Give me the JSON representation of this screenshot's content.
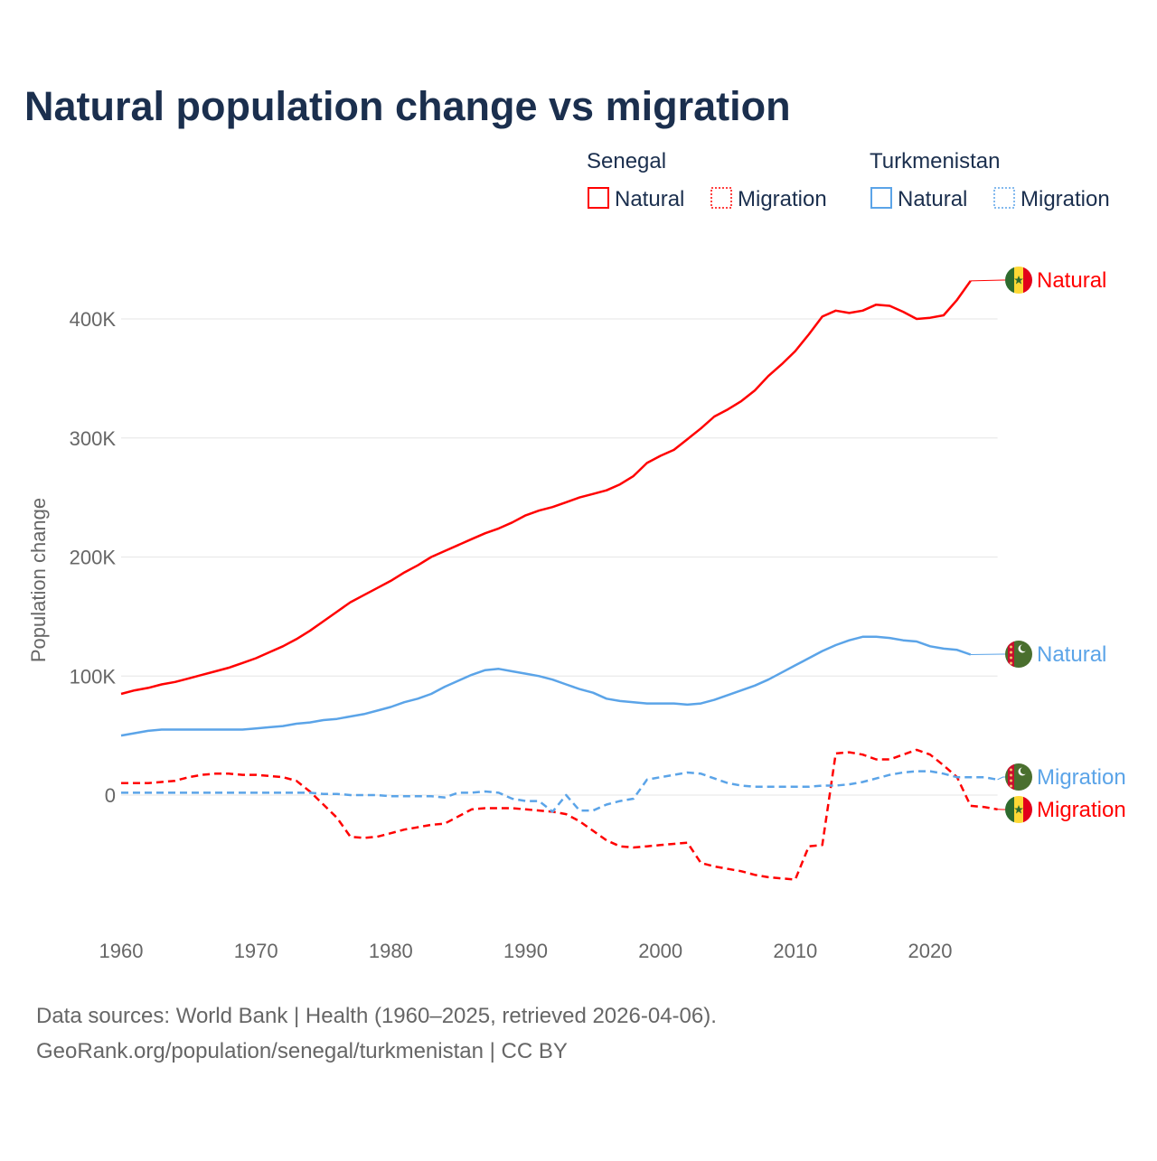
{
  "chart_data": {
    "type": "line",
    "title": "Natural population change vs migration",
    "ylabel": "Population change",
    "xlabel": "",
    "x_ticks": [
      1960,
      1970,
      1980,
      1990,
      2000,
      2010,
      2020
    ],
    "x_tick_labels": [
      "1960",
      "1970",
      "1980",
      "1990",
      "2000",
      "2010",
      "2020"
    ],
    "y_ticks": [
      0,
      100,
      200,
      300,
      400
    ],
    "y_tick_labels": [
      "0",
      "100K",
      "200K",
      "300K",
      "400K"
    ],
    "y_units": "thousands",
    "xlim": [
      1960,
      2025
    ],
    "grid": true,
    "legend": {
      "placement": "top-right",
      "groups": [
        {
          "country": "Senegal",
          "items": [
            "Natural",
            "Migration"
          ]
        },
        {
          "country": "Turkmenistan",
          "items": [
            "Natural",
            "Migration"
          ]
        }
      ]
    },
    "colors": {
      "senegal": "#ff0000",
      "turkmenistan": "#5ba4e8"
    },
    "series": [
      {
        "name": "Senegal Natural",
        "country": "Senegal",
        "kind": "Natural",
        "label": "Natural",
        "start_year": 1960,
        "values": [
          85,
          88,
          90,
          93,
          95,
          98,
          101,
          104,
          107,
          111,
          115,
          120,
          125,
          131,
          138,
          146,
          154,
          162,
          168,
          174,
          180,
          187,
          193,
          200,
          205,
          210,
          215,
          220,
          224,
          229,
          235,
          239,
          242,
          246,
          250,
          253,
          256,
          261,
          268,
          279,
          285,
          290,
          299,
          308,
          318,
          324,
          331,
          340,
          352,
          362,
          373,
          387,
          402,
          407,
          405,
          407,
          412,
          411,
          406,
          400,
          401,
          403,
          416,
          432
        ]
      },
      {
        "name": "Senegal Migration",
        "country": "Senegal",
        "kind": "Migration",
        "label": "Migration",
        "start_year": 1960,
        "values": [
          10,
          10,
          10,
          11,
          12,
          15,
          17,
          18,
          18,
          17,
          17,
          16,
          15,
          12,
          3,
          -8,
          -19,
          -35,
          -36,
          -35,
          -32,
          -29,
          -27,
          -25,
          -24,
          -18,
          -12,
          -11,
          -11,
          -11,
          -12,
          -13,
          -14,
          -16,
          -22,
          -30,
          -38,
          -43,
          -44,
          -43,
          -42,
          -41,
          -40,
          -57,
          -60,
          -62,
          -64,
          -67,
          -69,
          -70,
          -71,
          -43,
          -42,
          35,
          36,
          34,
          30,
          30,
          34,
          38,
          34,
          25,
          15,
          -9,
          -10,
          -12
        ]
      },
      {
        "name": "Turkmenistan Natural",
        "country": "Turkmenistan",
        "kind": "Natural",
        "label": "Natural",
        "start_year": 1960,
        "values": [
          50,
          52,
          54,
          55,
          55,
          55,
          55,
          55,
          55,
          55,
          56,
          57,
          58,
          60,
          61,
          63,
          64,
          66,
          68,
          71,
          74,
          78,
          81,
          85,
          91,
          96,
          101,
          105,
          106,
          104,
          102,
          100,
          97,
          93,
          89,
          86,
          81,
          79,
          78,
          77,
          77,
          77,
          76,
          77,
          80,
          84,
          88,
          92,
          97,
          103,
          109,
          115,
          121,
          126,
          130,
          133,
          133,
          132,
          130,
          129,
          125,
          123,
          122,
          118
        ]
      },
      {
        "name": "Turkmenistan Migration",
        "country": "Turkmenistan",
        "kind": "Migration",
        "label": "Migration",
        "start_year": 1960,
        "values": [
          2,
          2,
          2,
          2,
          2,
          2,
          2,
          2,
          2,
          2,
          2,
          2,
          2,
          2,
          2,
          1,
          1,
          0,
          0,
          0,
          -1,
          -1,
          -1,
          -1,
          -2,
          2,
          2,
          3,
          2,
          -3,
          -5,
          -5,
          -14,
          0,
          -13,
          -13,
          -8,
          -5,
          -3,
          13,
          15,
          17,
          19,
          18,
          14,
          10,
          8,
          7,
          7,
          7,
          7,
          7,
          8,
          8,
          9,
          11,
          14,
          17,
          19,
          20,
          20,
          18,
          15,
          15,
          15,
          13
        ]
      }
    ]
  },
  "footer": {
    "line1": "Data sources: World Bank | Health (1960–2025, retrieved 2026-04-06).",
    "line2": "GeoRank.org/population/senegal/turkmenistan | CC BY"
  }
}
